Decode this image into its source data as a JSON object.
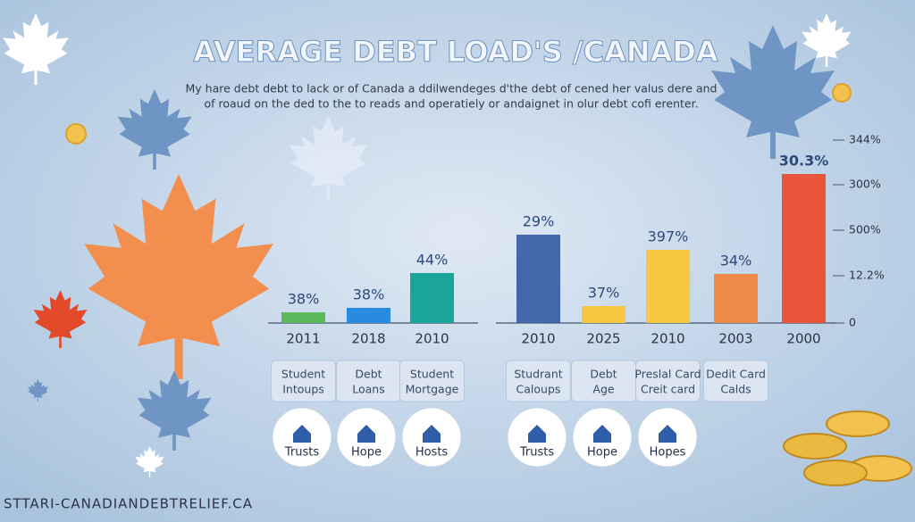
{
  "title": "AVERAGE DEBT LOAD'S /CANADA",
  "subtitle": [
    "My hare debt debt to lack or of Canada a ddilwendeges d'the debt of cened her valus dere and",
    "of roaud on the ded to the to reads and operatiely or andaignet in olur debt cofi erenter."
  ],
  "bars": [
    {
      "value_label": "38%",
      "year": "2011",
      "category": [
        "Student",
        "Intoups"
      ]
    },
    {
      "value_label": "38%",
      "year": "2018",
      "category": [
        "Debt",
        "Loans"
      ]
    },
    {
      "value_label": "44%",
      "year": "2010",
      "category": [
        "Student",
        "Mortgage"
      ]
    },
    {
      "value_label": "29%",
      "year": "2010",
      "category": [
        "Studrant",
        "Caloups"
      ]
    },
    {
      "value_label": "37%",
      "year": "2025",
      "category": [
        "Debt",
        "Age"
      ]
    },
    {
      "value_label": "397%",
      "year": "2010",
      "category": [
        "Preslal Card",
        "Creit card"
      ]
    },
    {
      "value_label": "34%",
      "year": "2003",
      "category": [
        "Dedit Card",
        "Calds"
      ]
    },
    {
      "value_label": "30.3%",
      "year": "2000"
    }
  ],
  "axis_labels": [
    "344%",
    "300%",
    "500%",
    "12.2%",
    "0"
  ],
  "icons": [
    "Trusts",
    "Hope",
    "Hosts",
    "Trusts",
    "Hope",
    "Hopes"
  ],
  "footer": "STTARI-CANADIANDEBTRELIEF.CA"
}
